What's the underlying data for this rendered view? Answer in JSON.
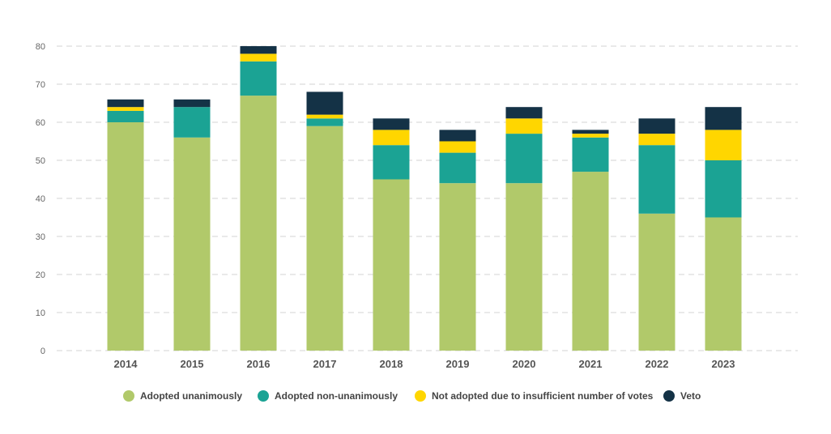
{
  "chart_data": {
    "type": "bar",
    "stacked": true,
    "title": "",
    "xlabel": "",
    "ylabel": "",
    "ylim": [
      0,
      80
    ],
    "yticks": [
      0,
      10,
      20,
      30,
      40,
      50,
      60,
      70,
      80
    ],
    "grid": true,
    "legend_position": "bottom",
    "categories": [
      "2014",
      "2015",
      "2016",
      "2017",
      "2018",
      "2019",
      "2020",
      "2021",
      "2022",
      "2023"
    ],
    "series": [
      {
        "name": "Adopted unanimously",
        "color": "#b1c96a",
        "values": [
          60,
          56,
          67,
          59,
          45,
          44,
          44,
          47,
          36,
          35
        ]
      },
      {
        "name": "Adopted non-unanimously",
        "color": "#1ba394",
        "values": [
          3,
          8,
          9,
          2,
          9,
          8,
          13,
          9,
          18,
          15
        ]
      },
      {
        "name": "Not adopted due to insufficient number of votes",
        "color": "#ffd600",
        "values": [
          1,
          0,
          2,
          1,
          4,
          3,
          4,
          1,
          3,
          8
        ]
      },
      {
        "name": "Veto",
        "color": "#143246",
        "values": [
          2,
          2,
          2,
          6,
          3,
          3,
          3,
          1,
          4,
          6
        ]
      }
    ]
  }
}
